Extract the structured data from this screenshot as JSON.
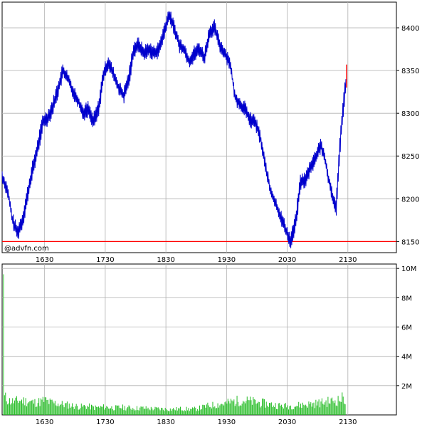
{
  "watermark": "@advfn.com",
  "colors": {
    "price_line": "#0000cc",
    "last_tick": "#ff0000",
    "reference_line": "#ff0000",
    "volume_bars": "#22bb22",
    "volume_spike": "#33cc33",
    "grid": "#b0b0b0",
    "frame": "#000000"
  },
  "chart_data": [
    {
      "type": "line",
      "panel": "price",
      "grid": true,
      "x_tick_labels": [
        "1630",
        "1730",
        "1830",
        "1930",
        "2030",
        "2130"
      ],
      "y_ticks": [
        8150,
        8200,
        8250,
        8300,
        8350,
        8400
      ],
      "y_tick_labels": [
        "8150",
        "8200",
        "8250",
        "8300",
        "8350",
        "8400"
      ],
      "ylim": [
        8137,
        8430
      ],
      "xlim": [
        "15:48",
        "22:18"
      ],
      "reference_line": 8150,
      "series": [
        {
          "x": [
            "15:48",
            "15:53",
            "15:58",
            "16:03",
            "16:08",
            "16:13",
            "16:18",
            "16:23",
            "16:28",
            "16:33",
            "16:38",
            "16:43",
            "16:48",
            "16:53",
            "16:58",
            "17:03",
            "17:08",
            "17:13",
            "17:18",
            "17:23",
            "17:28",
            "17:33",
            "17:38",
            "17:43",
            "17:48",
            "17:53",
            "17:58",
            "18:03",
            "18:08",
            "18:13",
            "18:18",
            "18:23",
            "18:28",
            "18:33",
            "18:38",
            "18:43",
            "18:48",
            "18:53",
            "18:58",
            "19:03",
            "19:08",
            "19:13",
            "19:18",
            "19:23",
            "19:28",
            "19:33",
            "19:38",
            "19:43",
            "19:48",
            "19:53",
            "19:58",
            "20:03",
            "20:08",
            "20:13",
            "20:18",
            "20:23",
            "20:28",
            "20:33",
            "20:38",
            "20:43",
            "20:48",
            "20:53",
            "20:58",
            "21:03",
            "21:08",
            "21:13",
            "21:18",
            "21:23",
            "21:28"
          ],
          "y": [
            8225,
            8210,
            8175,
            8160,
            8175,
            8205,
            8235,
            8260,
            8290,
            8295,
            8308,
            8328,
            8350,
            8340,
            8325,
            8315,
            8300,
            8305,
            8290,
            8305,
            8345,
            8360,
            8345,
            8330,
            8320,
            8340,
            8375,
            8380,
            8370,
            8375,
            8370,
            8375,
            8395,
            8415,
            8400,
            8380,
            8375,
            8360,
            8370,
            8375,
            8365,
            8395,
            8400,
            8380,
            8370,
            8360,
            8320,
            8310,
            8305,
            8292,
            8290,
            8272,
            8240,
            8210,
            8195,
            8180,
            8165,
            8150,
            8172,
            8220,
            8222,
            8238,
            8248,
            8264,
            8240,
            8210,
            8190,
            8280,
            8340
          ]
        }
      ],
      "last_tick": [
        8330,
        8357
      ]
    },
    {
      "type": "bar",
      "panel": "volume",
      "grid": true,
      "x_tick_labels": [
        "1630",
        "1730",
        "1830",
        "1930",
        "2030",
        "2130"
      ],
      "y_ticks": [
        2000000,
        4000000,
        6000000,
        8000000,
        10000000
      ],
      "y_tick_labels": [
        "2M",
        "4M",
        "6M",
        "8M",
        "10M"
      ],
      "ylim": [
        0,
        10300000
      ],
      "xlim": [
        "15:48",
        "22:18"
      ],
      "series": [
        {
          "x": [
            "15:49",
            "15:50",
            "15:55",
            "16:00",
            "16:05",
            "16:10",
            "16:15",
            "16:20",
            "16:25",
            "16:30",
            "16:35",
            "16:40",
            "16:45",
            "16:50",
            "16:55",
            "17:00",
            "17:05",
            "17:10",
            "17:15",
            "17:20",
            "17:25",
            "17:30",
            "17:35",
            "17:40",
            "17:45",
            "17:50",
            "17:55",
            "18:00",
            "18:05",
            "18:10",
            "18:15",
            "18:20",
            "18:25",
            "18:30",
            "18:35",
            "18:40",
            "18:45",
            "18:50",
            "18:55",
            "19:00",
            "19:05",
            "19:10",
            "19:15",
            "19:20",
            "19:25",
            "19:30",
            "19:35",
            "19:40",
            "19:45",
            "19:50",
            "19:55",
            "20:00",
            "20:05",
            "20:10",
            "20:15",
            "20:20",
            "20:25",
            "20:30",
            "20:35",
            "20:40",
            "20:45",
            "20:50",
            "20:55",
            "21:00",
            "21:05",
            "21:10",
            "21:15",
            "21:20",
            "21:25",
            "21:28"
          ],
          "y": [
            9600000,
            1200000,
            950000,
            900000,
            1000000,
            950000,
            900000,
            850000,
            900000,
            1000000,
            850000,
            800000,
            750000,
            700000,
            650000,
            600000,
            550000,
            600000,
            550000,
            500000,
            520000,
            550000,
            500000,
            480000,
            520000,
            500000,
            480000,
            450000,
            470000,
            450000,
            430000,
            420000,
            410000,
            400000,
            380000,
            400000,
            420000,
            400000,
            380000,
            420000,
            500000,
            600000,
            650000,
            700000,
            750000,
            800000,
            900000,
            950000,
            1000000,
            950000,
            900000,
            850000,
            800000,
            750000,
            700000,
            650000,
            620000,
            600000,
            620000,
            650000,
            700000,
            720000,
            750000,
            800000,
            850000,
            900000,
            950000,
            1000000,
            1150000,
            1000000
          ]
        }
      ]
    }
  ]
}
